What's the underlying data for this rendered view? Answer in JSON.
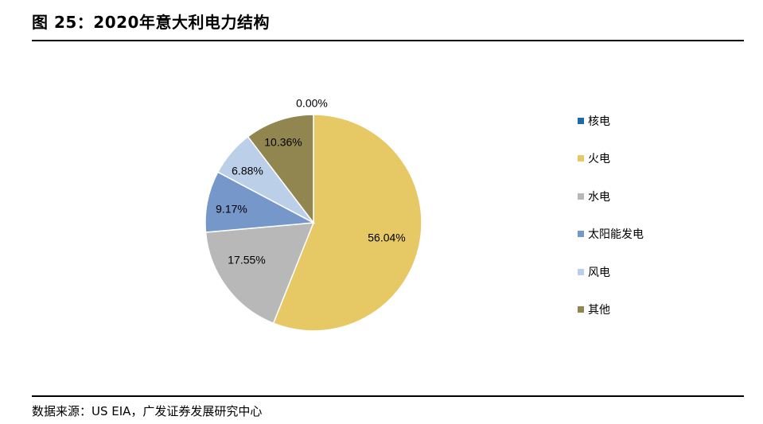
{
  "figure": {
    "title": "图 25：2020年意大利电力结构",
    "source": "数据来源：US EIA，广发证券发展研究中心"
  },
  "chart_data": {
    "type": "pie",
    "legend_position": "right",
    "slices": [
      {
        "name": "核电",
        "value": 0.0,
        "label": "0.00%",
        "color": "#1f6aa5"
      },
      {
        "name": "火电",
        "value": 56.04,
        "label": "56.04%",
        "color": "#e6c865"
      },
      {
        "name": "水电",
        "value": 17.55,
        "label": "17.55%",
        "color": "#b8b8b8"
      },
      {
        "name": "太阳能发电",
        "value": 9.17,
        "label": "9.17%",
        "color": "#7597c9"
      },
      {
        "name": "风电",
        "value": 6.88,
        "label": "6.88%",
        "color": "#bccfe8"
      },
      {
        "name": "其他",
        "value": 10.36,
        "label": "10.36%",
        "color": "#928650"
      }
    ]
  }
}
